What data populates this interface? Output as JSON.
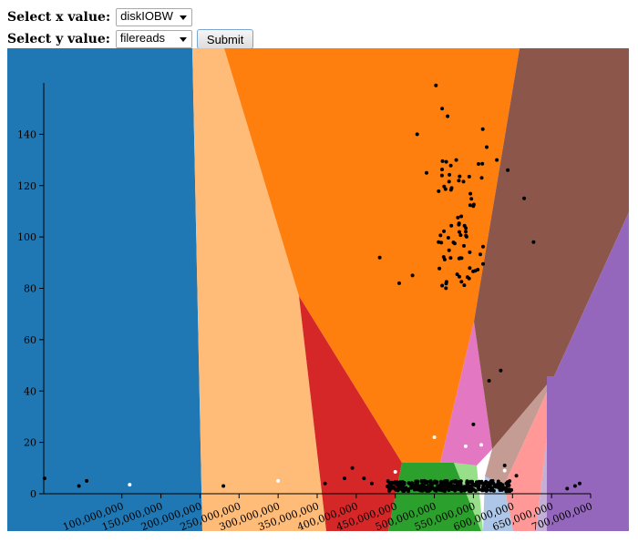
{
  "controls": {
    "x_label": "Select x value:",
    "x_value": "diskIOBW",
    "y_label": "Select y value:",
    "y_value": "filereads",
    "submit_label": "Submit"
  },
  "chart_data": {
    "type": "scatter",
    "title": "",
    "xlabel": "",
    "ylabel": "",
    "xlim": [
      0,
      700000000
    ],
    "ylim": [
      0,
      160
    ],
    "x_ticks": [
      100000000,
      150000000,
      200000000,
      250000000,
      300000000,
      350000000,
      400000000,
      450000000,
      500000000,
      550000000,
      600000000,
      650000000,
      700000000
    ],
    "x_tick_labels": [
      "100,000,000",
      "150,000,000",
      "200,000,000",
      "250,000,000",
      "300,000,000",
      "350,000,000",
      "400,000,000",
      "450,000,000",
      "500,000,000",
      "550,000,000",
      "600,000,000",
      "650,000,000",
      "700,000,000"
    ],
    "y_ticks": [
      0,
      20,
      40,
      60,
      80,
      100,
      120,
      140
    ],
    "y_tick_labels": [
      "0",
      "20",
      "40",
      "60",
      "80",
      "100",
      "120",
      "140"
    ],
    "background": "voronoi cluster regions",
    "region_colors": [
      "#1f77b4",
      "#ffbb78",
      "#ff7f0e",
      "#d62728",
      "#2ca02c",
      "#98df8a",
      "#e377c2",
      "#8c564b",
      "#c49c94",
      "#ff9896",
      "#aec7e8",
      "#c5b0d5",
      "#9467bd"
    ],
    "point_colors": {
      "default": "#000000",
      "centroid": "#ffffff"
    },
    "centroids": [
      {
        "x": 110000000,
        "y": 3.5
      },
      {
        "x": 300000000,
        "y": 5
      },
      {
        "x": 450000000,
        "y": 8.5
      },
      {
        "x": 500000000,
        "y": 22
      },
      {
        "x": 540000000,
        "y": 18.5
      },
      {
        "x": 560000000,
        "y": 19
      },
      {
        "x": 590000000,
        "y": 9
      }
    ],
    "clusters": [
      {
        "x": 535000000,
        "y": 105,
        "spread_x": 30000000,
        "spread_y": 25,
        "count": 70
      },
      {
        "x": 520000000,
        "y": 3,
        "spread_x": 80000000,
        "spread_y": 2,
        "count": 320
      }
    ],
    "points": [
      {
        "x": 1000000,
        "y": 6
      },
      {
        "x": 45000000,
        "y": 3
      },
      {
        "x": 55000000,
        "y": 5
      },
      {
        "x": 230000000,
        "y": 3
      },
      {
        "x": 360000000,
        "y": 4
      },
      {
        "x": 385000000,
        "y": 6
      },
      {
        "x": 395000000,
        "y": 10
      },
      {
        "x": 410000000,
        "y": 6
      },
      {
        "x": 420000000,
        "y": 4
      },
      {
        "x": 430000000,
        "y": 92
      },
      {
        "x": 455000000,
        "y": 82
      },
      {
        "x": 472000000,
        "y": 85
      },
      {
        "x": 478000000,
        "y": 140
      },
      {
        "x": 490000000,
        "y": 125
      },
      {
        "x": 502000000,
        "y": 159
      },
      {
        "x": 510000000,
        "y": 150
      },
      {
        "x": 517000000,
        "y": 147
      },
      {
        "x": 528000000,
        "y": 130
      },
      {
        "x": 562000000,
        "y": 142
      },
      {
        "x": 567000000,
        "y": 135
      },
      {
        "x": 580000000,
        "y": 130
      },
      {
        "x": 594000000,
        "y": 126
      },
      {
        "x": 615000000,
        "y": 115
      },
      {
        "x": 627000000,
        "y": 98
      },
      {
        "x": 585000000,
        "y": 48
      },
      {
        "x": 570000000,
        "y": 44
      },
      {
        "x": 550000000,
        "y": 27
      },
      {
        "x": 590000000,
        "y": 11
      },
      {
        "x": 605000000,
        "y": 7
      },
      {
        "x": 680000000,
        "y": 3
      },
      {
        "x": 686000000,
        "y": 4
      },
      {
        "x": 670000000,
        "y": 2
      }
    ]
  }
}
